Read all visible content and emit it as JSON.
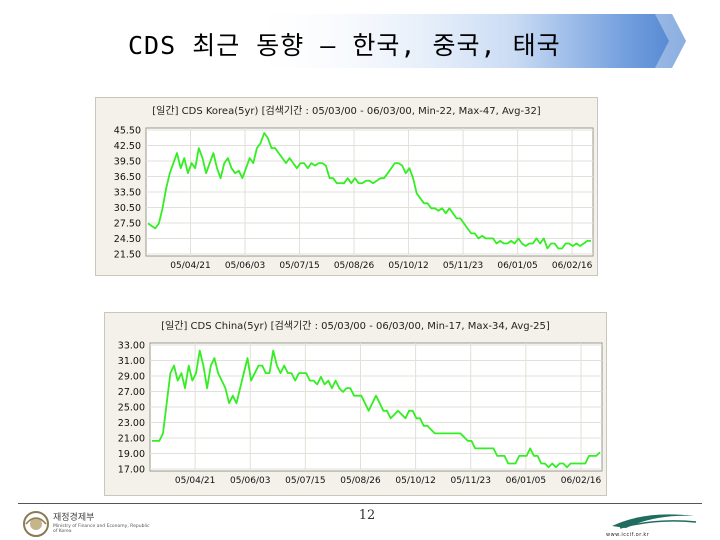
{
  "slide": {
    "title": "CDS 최근 동향 – 한국, 중국, 태국",
    "page_number": "12",
    "ministry_name": "재정경제부",
    "ministry_sub": "Ministry of Finance and Economy, Republic of Korea",
    "site_url": "www.iccif.or.kr",
    "colors": {
      "banner": "#5b8fd6",
      "series": "#33ee22",
      "panel_bg": "#f3f1e9",
      "plot_bg": "#ffffff"
    }
  },
  "chart_data": [
    {
      "type": "line",
      "title": "[일간] CDS Korea(5yr) [검색기간 : 05/03/00 - 06/03/00, Min-22, Max-47, Avg-32]",
      "ylim": [
        21.5,
        47
      ],
      "yticks": [
        "45.50",
        "42.50",
        "39.50",
        "36.50",
        "33.50",
        "30.50",
        "27.50",
        "24.50",
        "21.50"
      ],
      "xtick_labels": [
        "05/04/21",
        "05/06/03",
        "05/07/15",
        "05/08/26",
        "05/10/12",
        "05/11/23",
        "06/01/05",
        "06/02/16"
      ],
      "grid": true,
      "series": [
        {
          "values": [
            28,
            27.5,
            27,
            28,
            31,
            35,
            38,
            40,
            42,
            39,
            41,
            38,
            40,
            39,
            43,
            41,
            38,
            40,
            42,
            39,
            37,
            40,
            41,
            39,
            38,
            38.5,
            37,
            39,
            41,
            40,
            43,
            44,
            46,
            45,
            43,
            43,
            42,
            41,
            40,
            41,
            40,
            39,
            40,
            40,
            39,
            40,
            39.5,
            40,
            40,
            39.5,
            37,
            37,
            36,
            36,
            36,
            37,
            36,
            37,
            36,
            36,
            36.5,
            36.5,
            36,
            36.5,
            37,
            37,
            38,
            39,
            40,
            40,
            39.5,
            38,
            39,
            37,
            34,
            33,
            32,
            32,
            31,
            31,
            30.5,
            31,
            30,
            31,
            30,
            29,
            29,
            28,
            27,
            26,
            26,
            25,
            25.5,
            25,
            25,
            25,
            24,
            24.5,
            24,
            24,
            24.5,
            24,
            25,
            24,
            23.5,
            24,
            24,
            25,
            24,
            25,
            23,
            24,
            24,
            23,
            23,
            24,
            24,
            23.5,
            24,
            23.5,
            24,
            24.5,
            24.5
          ]
        }
      ]
    },
    {
      "type": "line",
      "title": "[일간] CDS China(5yr) [검색기간 : 05/03/00 - 06/03/00, Min-17, Max-34, Avg-25]",
      "ylim": [
        17,
        34
      ],
      "yticks": [
        "33.00",
        "31.00",
        "29.00",
        "27.00",
        "25.00",
        "23.00",
        "21.00",
        "19.00",
        "17.00"
      ],
      "xtick_labels": [
        "05/04/21",
        "05/06/03",
        "05/07/15",
        "05/08/26",
        "05/10/12",
        "05/11/23",
        "06/01/05",
        "06/02/16"
      ],
      "grid": true,
      "series": [
        {
          "values": [
            21,
            21,
            21,
            22,
            26,
            30,
            31,
            29,
            30,
            28,
            31,
            29,
            30,
            33,
            31,
            28,
            31,
            32,
            30,
            29,
            28,
            26,
            27,
            26,
            28,
            30,
            32,
            29,
            30,
            31,
            31,
            30,
            30,
            33,
            31,
            30,
            31,
            30,
            30,
            29,
            30,
            30,
            30,
            29,
            29,
            28.5,
            29.5,
            28.5,
            29,
            28,
            29,
            28,
            27.5,
            28,
            28,
            27,
            27,
            27,
            26,
            25,
            26,
            27,
            26,
            25,
            25,
            24,
            24.5,
            25,
            24.5,
            24,
            25,
            25,
            24,
            24,
            23,
            23,
            22.5,
            22,
            22,
            22,
            22,
            22,
            22,
            22,
            22,
            21.5,
            21,
            21,
            20,
            20,
            20,
            20,
            20,
            20,
            19,
            19,
            19,
            18,
            18,
            18,
            19,
            19,
            19,
            20,
            19,
            19,
            18,
            18,
            17.5,
            18,
            17.5,
            18,
            18,
            17.5,
            18,
            18,
            18,
            18,
            18,
            19,
            19,
            19,
            19.5
          ]
        }
      ]
    }
  ]
}
